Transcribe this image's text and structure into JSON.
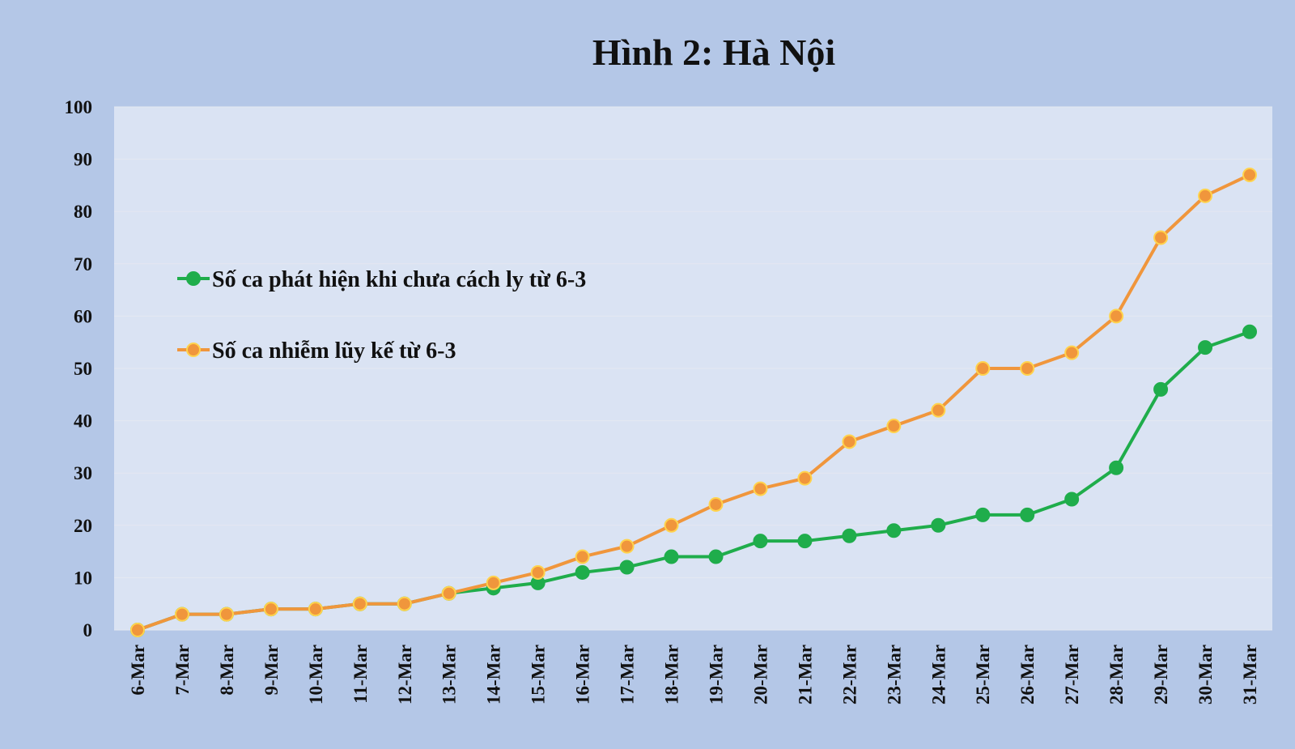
{
  "chart_data": {
    "type": "line",
    "title": "Hình 2: Hà Nội",
    "xlabel": "",
    "ylabel": "",
    "ylim": [
      0,
      100
    ],
    "yticks": [
      0,
      10,
      20,
      30,
      40,
      50,
      60,
      70,
      80,
      90,
      100
    ],
    "grid": true,
    "legend_position": "upper-left",
    "categories": [
      "6-Mar",
      "7-Mar",
      "8-Mar",
      "9-Mar",
      "10-Mar",
      "11-Mar",
      "12-Mar",
      "13-Mar",
      "14-Mar",
      "15-Mar",
      "16-Mar",
      "17-Mar",
      "18-Mar",
      "19-Mar",
      "20-Mar",
      "21-Mar",
      "22-Mar",
      "23-Mar",
      "24-Mar",
      "25-Mar",
      "26-Mar",
      "27-Mar",
      "28-Mar",
      "29-Mar",
      "30-Mar",
      "31-Mar"
    ],
    "series": [
      {
        "name": "Số ca phát hiện khi chưa cách ly từ 6-3",
        "color": "#1fad4b",
        "values": [
          0,
          3,
          3,
          4,
          4,
          5,
          5,
          7,
          8,
          9,
          11,
          12,
          14,
          14,
          17,
          17,
          18,
          19,
          20,
          22,
          22,
          25,
          31,
          46,
          54,
          57
        ]
      },
      {
        "name": "Số ca nhiễm lũy kế từ 6-3",
        "color": "#f0963c",
        "values": [
          0,
          3,
          3,
          4,
          4,
          5,
          5,
          7,
          9,
          11,
          14,
          16,
          20,
          24,
          27,
          29,
          36,
          39,
          42,
          50,
          50,
          53,
          60,
          75,
          83,
          87
        ]
      }
    ],
    "colors": {
      "background": "#b4c7e7",
      "plot_area": "#dae3f3",
      "marker_outline": "#ffd34d"
    }
  }
}
